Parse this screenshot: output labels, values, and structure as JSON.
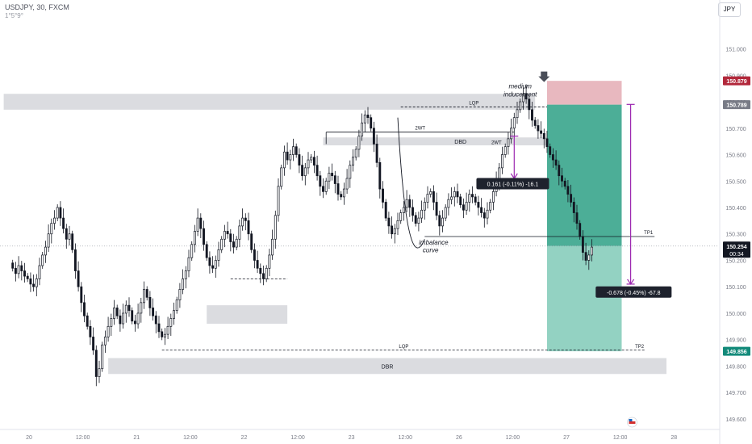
{
  "header": {
    "symbol_line": "USDJPY, 30, FXCM",
    "sub_line": "1°5°9°"
  },
  "currency_button": "JPY",
  "chart_data": {
    "type": "candlestick",
    "ylim": [
      149.56,
      151.13
    ],
    "y_ticks": [
      149.6,
      149.7,
      149.8,
      149.9,
      150.0,
      150.1,
      150.2,
      150.3,
      150.4,
      150.5,
      150.6,
      150.7,
      150.8,
      150.9,
      151.0
    ],
    "y_tick_labels": [
      "149.600",
      "149.700",
      "149.800",
      "149.900",
      "150.000",
      "150.100",
      "150.200",
      "150.300",
      "150.400",
      "150.500",
      "150.600",
      "150.700",
      "150.800",
      "150.900",
      "151.000"
    ],
    "x_ticks": [
      {
        "t": 6.5,
        "label": "20"
      },
      {
        "t": 24.5,
        "label": "12:00"
      },
      {
        "t": 42.5,
        "label": "21"
      },
      {
        "t": 60.5,
        "label": "12:00"
      },
      {
        "t": 78.5,
        "label": "22"
      },
      {
        "t": 96.5,
        "label": "12:00"
      },
      {
        "t": 114.5,
        "label": "23"
      },
      {
        "t": 132.5,
        "label": "12:00"
      },
      {
        "t": 150.5,
        "label": "26"
      },
      {
        "t": 168.5,
        "label": "12:00"
      },
      {
        "t": 186.5,
        "label": "27"
      },
      {
        "t": 204.5,
        "label": "12:00"
      },
      {
        "t": 222.5,
        "label": "28"
      }
    ],
    "price_labels": [
      {
        "value": 150.879,
        "text": "150.879",
        "color": "#b2283b"
      },
      {
        "value": 150.789,
        "text": "150.789",
        "color": "#787b86"
      },
      {
        "value": 150.254,
        "text": "150.254",
        "sub": "00:34",
        "color": "#131722"
      },
      {
        "value": 149.856,
        "text": "149.856",
        "color": "#138a7a"
      }
    ],
    "current_price": 150.254,
    "zones": [
      {
        "t1": -2,
        "t2": 176,
        "top": 150.83,
        "bottom": 150.77,
        "color": "#d5d6da"
      },
      {
        "t1": 105,
        "t2": 197,
        "top": 150.665,
        "bottom": 150.635,
        "color": "#d5d6da",
        "label": "DBD"
      },
      {
        "t1": 66,
        "t2": 93,
        "top": 150.03,
        "bottom": 149.96,
        "color": "#d5d6da"
      },
      {
        "t1": 33,
        "t2": 220,
        "top": 149.83,
        "bottom": 149.77,
        "color": "#d5d6da",
        "label": "DBR"
      }
    ],
    "position": {
      "t1": 180,
      "t2": 205,
      "entry": 150.789,
      "stop": 150.879,
      "target": 149.856,
      "current": 150.254,
      "loss_color": "#e8b8bf",
      "profit_color": "#4cae97",
      "profit_light": "#93d2c2"
    },
    "levels": [
      {
        "t1": 51,
        "t2": 213,
        "value": 149.86,
        "style": "dashed",
        "label": "LQP",
        "right_label": "TP2"
      },
      {
        "t1": 131,
        "t2": 180,
        "value": 150.78,
        "style": "dashed",
        "label": "LQP"
      },
      {
        "t1": 139,
        "t2": 216,
        "value": 150.29,
        "style": "solid",
        "right_label": "TP1"
      },
      {
        "t1": 106,
        "t2": 169,
        "value": 150.685,
        "style": "solid",
        "label": "2WT",
        "label2": "2WT"
      },
      {
        "t1": 74,
        "t2": 93,
        "value": 150.13,
        "style": "dashed"
      }
    ],
    "annotations": [
      {
        "text": "medium",
        "t": 171,
        "value": 150.85,
        "italic": true
      },
      {
        "text": "inducement",
        "t": 171,
        "value": 150.82,
        "italic": true
      },
      {
        "text": "imbalance",
        "t": 142,
        "value": 150.26,
        "italic": true
      },
      {
        "text": "curve",
        "t": 141,
        "value": 150.23,
        "italic": true
      }
    ],
    "measure_labels": [
      {
        "text": "0.161 (-0.11%) -16.1",
        "t": 168.5,
        "value": 150.49
      },
      {
        "text": "-0.678 (-0.45%) -67.8",
        "t": 209,
        "value": 150.08
      }
    ],
    "arrows": [
      {
        "t": 169,
        "from": 150.67,
        "to": 150.51
      },
      {
        "t": 208,
        "from": 150.79,
        "to": 150.11
      }
    ],
    "closes": [
      150.17,
      150.15,
      150.18,
      150.16,
      150.14,
      150.13,
      150.11,
      150.1,
      150.13,
      150.18,
      150.22,
      150.25,
      150.3,
      150.34,
      150.36,
      150.4,
      150.36,
      150.32,
      150.28,
      150.3,
      150.24,
      150.16,
      150.1,
      150.04,
      149.99,
      149.95,
      149.91,
      149.86,
      149.76,
      149.79,
      149.88,
      149.91,
      149.95,
      149.98,
      150.02,
      149.99,
      149.96,
      150.0,
      150.03,
      150.01,
      149.97,
      149.96,
      150.0,
      150.04,
      150.09,
      150.06,
      150.02,
      149.99,
      149.96,
      149.93,
      149.91,
      149.92,
      149.95,
      149.98,
      150.01,
      150.05,
      150.09,
      150.13,
      150.16,
      150.21,
      150.26,
      150.31,
      150.36,
      150.32,
      150.26,
      150.21,
      150.18,
      150.17,
      150.2,
      150.24,
      150.28,
      150.31,
      150.3,
      150.27,
      150.25,
      150.28,
      150.33,
      150.36,
      150.35,
      150.3,
      150.24,
      150.2,
      150.17,
      150.15,
      150.13,
      150.17,
      150.22,
      150.28,
      150.37,
      150.48,
      150.55,
      150.61,
      150.58,
      150.6,
      150.63,
      150.6,
      150.56,
      150.52,
      150.55,
      150.58,
      150.59,
      150.56,
      150.52,
      150.48,
      150.46,
      150.5,
      150.53,
      150.52,
      150.49,
      150.45,
      150.44,
      150.47,
      150.51,
      150.56,
      150.59,
      150.62,
      150.67,
      150.72,
      150.75,
      150.74,
      150.7,
      150.64,
      150.57,
      150.47,
      150.42,
      150.36,
      150.33,
      150.3,
      150.32,
      150.35,
      150.38,
      150.4,
      150.43,
      150.4,
      150.37,
      150.34,
      150.36,
      150.39,
      150.42,
      150.45,
      150.46,
      150.42,
      150.37,
      150.33,
      150.36,
      150.4,
      150.43,
      150.44,
      150.46,
      150.44,
      150.41,
      150.39,
      150.42,
      150.45,
      150.44,
      150.42,
      150.4,
      150.38,
      150.36,
      150.39,
      150.42,
      150.46,
      150.5,
      150.55,
      150.6,
      150.63,
      150.66,
      150.7,
      150.74,
      150.77,
      150.8,
      150.83,
      150.81,
      150.77,
      150.73,
      150.71,
      150.69,
      150.68,
      150.66,
      150.63,
      150.6,
      150.58,
      150.56,
      150.52,
      150.5,
      150.48,
      150.45,
      150.42,
      150.38,
      150.34,
      150.29,
      150.23,
      150.2,
      150.22,
      150.25
    ]
  }
}
